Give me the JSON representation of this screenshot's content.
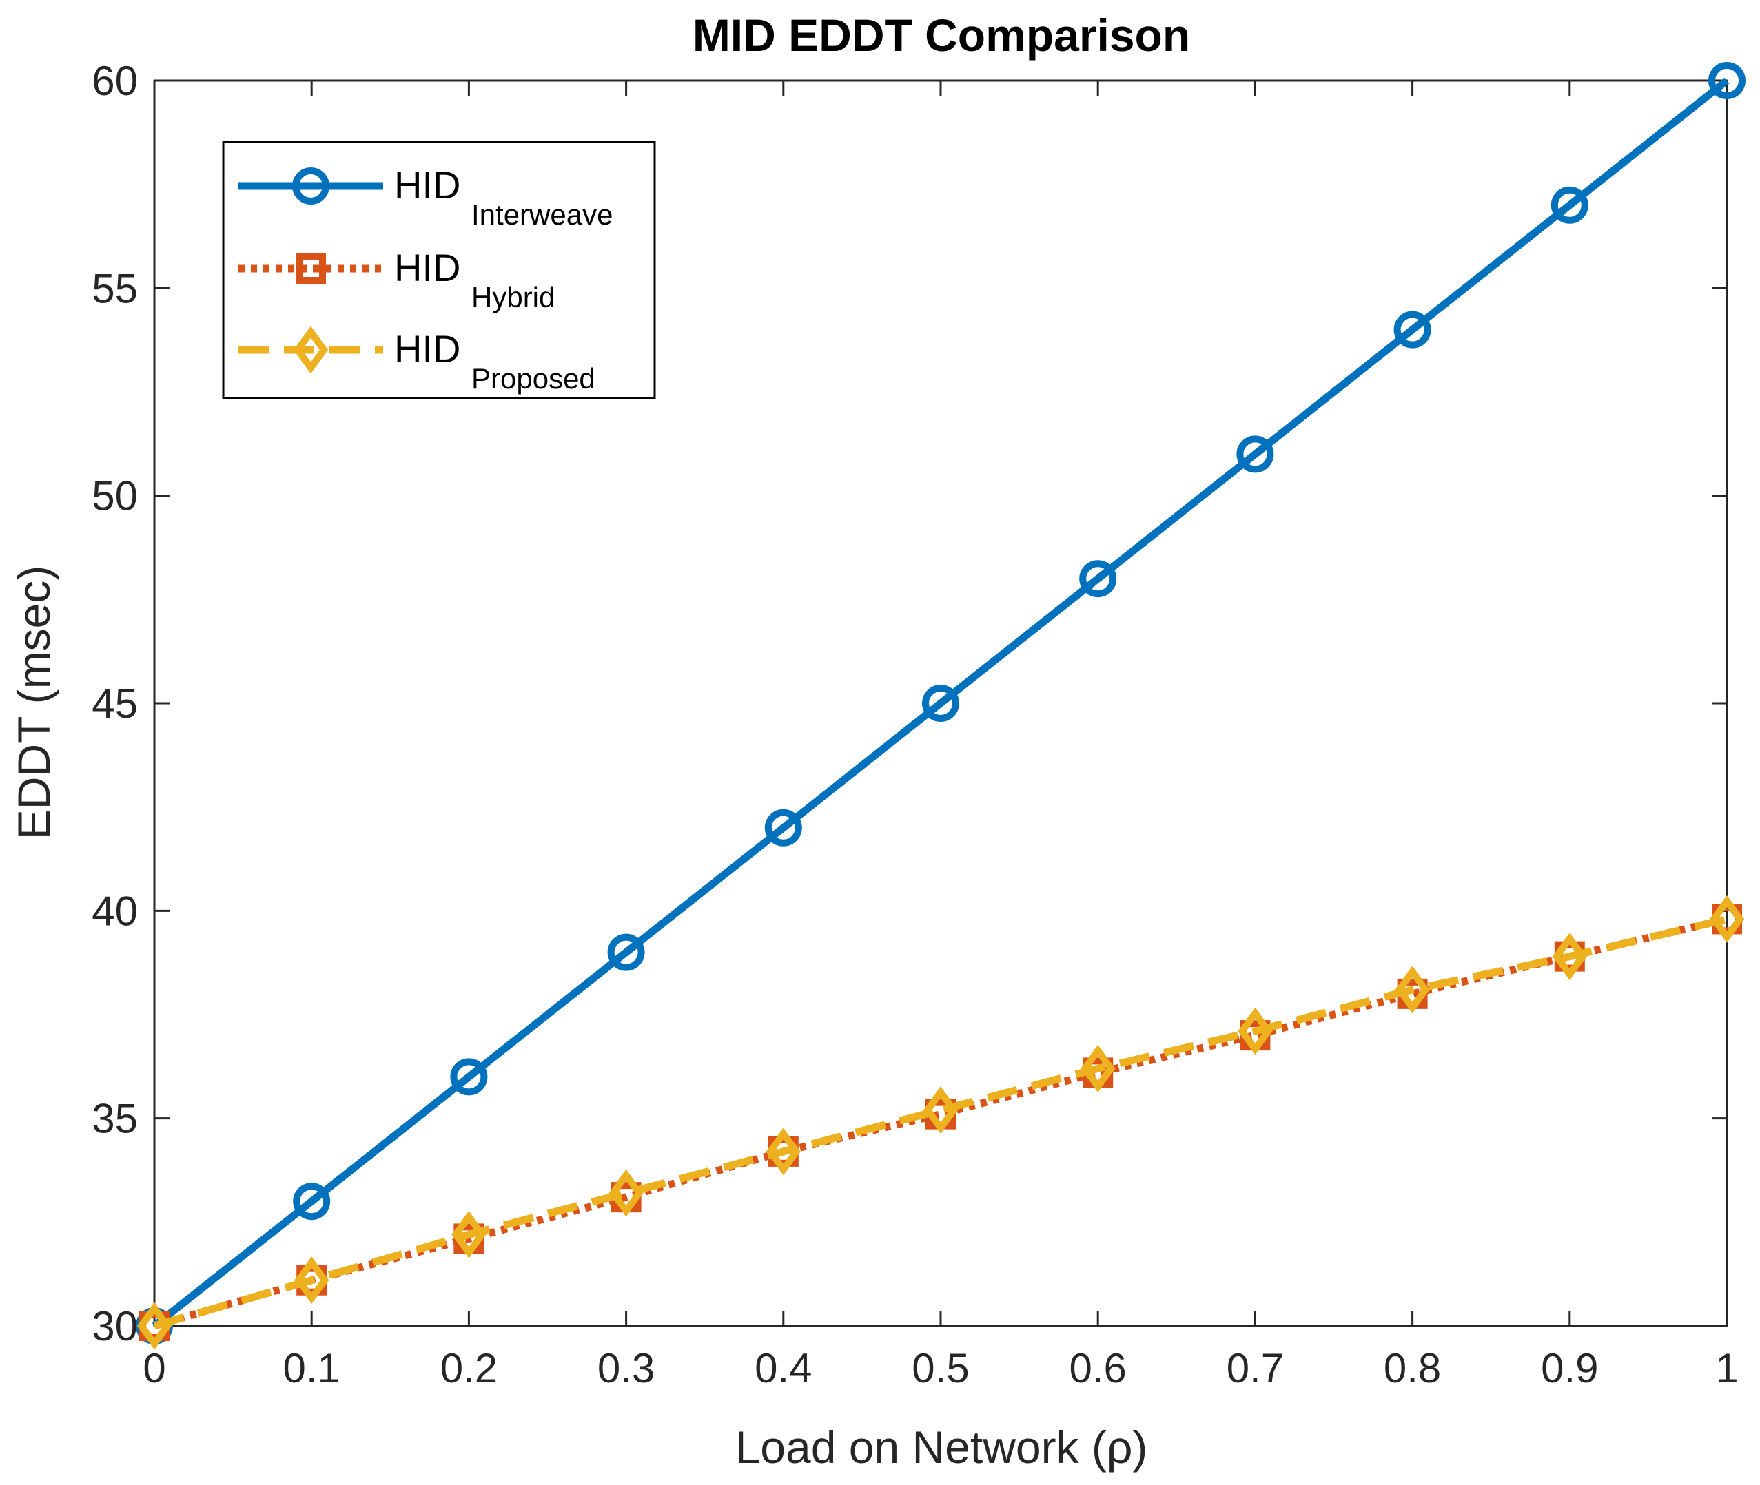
{
  "chart_data": {
    "type": "line",
    "title": "MID EDDT Comparison",
    "xlabel": "Load on Network (ρ)",
    "ylabel": "EDDT (msec)",
    "xlim": [
      0,
      1
    ],
    "ylim": [
      30,
      60
    ],
    "x": [
      0,
      0.1,
      0.2,
      0.3,
      0.4,
      0.5,
      0.6,
      0.7,
      0.8,
      0.9,
      1.0
    ],
    "x_tick_labels": [
      "0",
      "0.1",
      "0.2",
      "0.3",
      "0.4",
      "0.5",
      "0.6",
      "0.7",
      "0.8",
      "0.9",
      "1"
    ],
    "y_ticks": [
      30,
      35,
      40,
      45,
      50,
      55,
      60
    ],
    "y_tick_labels": [
      "30",
      "35",
      "40",
      "45",
      "50",
      "55",
      "60"
    ],
    "grid": false,
    "legend_position": "top-left",
    "series": [
      {
        "name": "HID",
        "subscript": "Interweave",
        "color": "#0072BD",
        "line_style": "solid",
        "marker": "circle",
        "values": [
          30,
          33,
          36,
          39,
          42,
          45,
          48,
          51,
          54,
          57,
          60
        ]
      },
      {
        "name": "HID",
        "subscript": "Hybrid",
        "color": "#D95319",
        "line_style": "dotted",
        "marker": "square",
        "values": [
          30,
          31.1,
          32.1,
          33.1,
          34.2,
          35.1,
          36.1,
          37.0,
          38.0,
          38.9,
          39.8
        ]
      },
      {
        "name": "HID",
        "subscript": "Proposed",
        "color": "#EDB120",
        "line_style": "dashed",
        "marker": "diamond",
        "values": [
          30,
          31.1,
          32.2,
          33.2,
          34.2,
          35.2,
          36.2,
          37.1,
          38.1,
          38.9,
          39.8
        ]
      }
    ]
  }
}
